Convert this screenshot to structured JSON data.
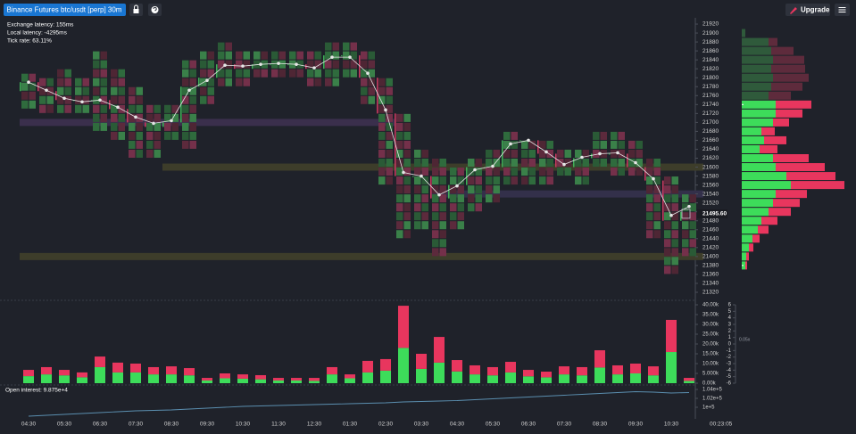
{
  "toolbar": {
    "symbol": "Binance Futures btc/usdt [perp] 30m",
    "upgrade": "Upgrade"
  },
  "status": [
    "Exchange latency: 155ms",
    "Local latency: -4295ms",
    "Tick rate: 63.11%"
  ],
  "countdown": "00:23:05",
  "chart_data": [
    {
      "type": "candlestick",
      "categories": [
        "04:30",
        null,
        "05:30",
        null,
        "06:30",
        null,
        "07:30",
        null,
        "08:30",
        null,
        "09:30",
        null,
        "10:30",
        null,
        "11:30",
        null,
        "12:30",
        null,
        "01:30",
        null,
        "02:30",
        null,
        "03:30",
        null,
        "04:30",
        null,
        "05:30",
        null,
        "06:30",
        null,
        "07:30",
        null,
        "08:30",
        null,
        "09:30",
        null,
        "10:30",
        null
      ],
      "open": [
        21770,
        21790,
        21770,
        21750,
        21750,
        21750,
        21730,
        21700,
        21690,
        21700,
        21780,
        21800,
        21830,
        21820,
        21830,
        21830,
        21830,
        21820,
        21850,
        21850,
        21800,
        21720,
        21580,
        21580,
        21530,
        21560,
        21600,
        21600,
        21660,
        21660,
        21630,
        21600,
        21620,
        21630,
        21630,
        21600,
        21570,
        21480
      ],
      "high": [
        21810,
        21800,
        21820,
        21800,
        21860,
        21820,
        21780,
        21740,
        21740,
        21840,
        21860,
        21880,
        21860,
        21860,
        21860,
        21860,
        21860,
        21880,
        21880,
        21860,
        21800,
        21720,
        21640,
        21620,
        21600,
        21620,
        21640,
        21680,
        21660,
        21660,
        21640,
        21640,
        21680,
        21680,
        21660,
        21620,
        21580,
        21540
      ],
      "low": [
        21740,
        21730,
        21720,
        21720,
        21680,
        21660,
        21620,
        21620,
        21660,
        21640,
        21740,
        21780,
        21780,
        21800,
        21800,
        21800,
        21790,
        21790,
        21800,
        21740,
        21560,
        21440,
        21460,
        21400,
        21460,
        21500,
        21520,
        21560,
        21560,
        21560,
        21580,
        21560,
        21600,
        21580,
        21580,
        21440,
        21360,
        21400
      ],
      "close": [
        21790,
        21770,
        21750,
        21750,
        21750,
        21730,
        21700,
        21690,
        21700,
        21780,
        21800,
        21830,
        21820,
        21830,
        21830,
        21830,
        21820,
        21850,
        21850,
        21800,
        21720,
        21580,
        21580,
        21530,
        21560,
        21600,
        21600,
        21660,
        21660,
        21630,
        21600,
        21620,
        21630,
        21630,
        21600,
        21570,
        21480,
        21500
      ],
      "line": [
        21790,
        21772,
        21754,
        21746,
        21750,
        21734,
        21712,
        21698,
        21704,
        21772,
        21794,
        21828,
        21826,
        21830,
        21832,
        21830,
        21822,
        21846,
        21846,
        21810,
        21728,
        21588,
        21580,
        21538,
        21558,
        21594,
        21602,
        21652,
        21660,
        21634,
        21606,
        21622,
        21630,
        21632,
        21610,
        21574,
        21492,
        21512
      ],
      "up_color": "#3fae57",
      "down_color": "#c8385f",
      "line_color": "#e6e6e6",
      "ylim": [
        21306,
        21934
      ],
      "yticks": [
        21920,
        21900,
        21880,
        21860,
        21840,
        21820,
        21800,
        21780,
        21760,
        21740,
        21720,
        21700,
        21680,
        21660,
        21640,
        21620,
        21600,
        21580,
        21560,
        21540,
        21520,
        21500,
        21480,
        21460,
        21440,
        21420,
        21400,
        21380,
        21360,
        21340,
        21320
      ],
      "last_price": {
        "value": 21495.6,
        "label": "21495.60"
      },
      "levels": [
        {
          "price": 21700,
          "color": "#3a2f4c",
          "start": 0,
          "end": 20
        },
        {
          "price": 21600,
          "color": "#3d3d2a",
          "start": 8,
          "end": 37
        },
        {
          "price": 21540,
          "color": "#33304a",
          "start": 23,
          "end": 37
        },
        {
          "price": 21400,
          "color": "#3d3d2a",
          "start": 0,
          "end": 37
        }
      ],
      "profile": {
        "levels": [
          21900,
          21880,
          21860,
          21840,
          21820,
          21800,
          21780,
          21760,
          21740,
          21720,
          21700,
          21680,
          21660,
          21640,
          21620,
          21600,
          21580,
          21560,
          21540,
          21520,
          21500,
          21480,
          21460,
          21440,
          21420,
          21400,
          21380
        ],
        "buy": [
          4,
          30,
          33,
          35,
          33,
          35,
          33,
          30,
          38,
          38,
          35,
          22,
          25,
          20,
          35,
          38,
          50,
          55,
          38,
          35,
          30,
          22,
          18,
          12,
          8,
          5,
          4
        ],
        "sell": [
          0,
          10,
          25,
          35,
          38,
          40,
          35,
          25,
          40,
          30,
          18,
          15,
          25,
          20,
          40,
          55,
          55,
          60,
          35,
          30,
          25,
          18,
          12,
          8,
          5,
          3,
          2
        ],
        "xlim": [
          0,
          128
        ],
        "value_area": [
          21380,
          21740
        ],
        "buy_color": "#3ddc5a",
        "sell_color": "#e8365e",
        "dim_buy_color": "#2f5a3b",
        "dim_sell_color": "#5e2b3c"
      }
    },
    {
      "type": "bar",
      "stacked": true,
      "series": [
        {
          "color": "#3ddc5a",
          "values": [
            3.6,
            4.5,
            4,
            3,
            8.2,
            5.5,
            5.5,
            4.5,
            4.5,
            4,
            1.4,
            2.5,
            2.3,
            2,
            1.4,
            1.4,
            1.2,
            4.5,
            2.5,
            5.5,
            6.4,
            18,
            7.3,
            10.5,
            6,
            4.5,
            4,
            5.5,
            3.5,
            3,
            4.5,
            4,
            8,
            4.5,
            5,
            4,
            15.9,
            1.2
          ]
        },
        {
          "color": "#e8365e",
          "values": [
            3.2,
            3.7,
            2.8,
            2.5,
            5.4,
            5,
            4.5,
            3.7,
            4.1,
            3.7,
            1.3,
            2.5,
            2.2,
            2.1,
            1.3,
            1.3,
            1.5,
            3.7,
            2,
            5.9,
            5.9,
            21.5,
            7.7,
            13.1,
            5.8,
            4.6,
            4.2,
            5.4,
            3.3,
            2.9,
            4.1,
            4.2,
            8.8,
            4.6,
            5,
            4.6,
            16.4,
            1.5
          ]
        }
      ],
      "ylim": [
        0,
        40
      ],
      "yticks": [
        {
          "value": 0,
          "label": "0.00k"
        },
        {
          "value": 5,
          "label": "5.000k"
        },
        {
          "value": 10,
          "label": "10.00k"
        },
        {
          "value": 15,
          "label": "15.00k"
        },
        {
          "value": 20,
          "label": "20.00k"
        },
        {
          "value": 25,
          "label": "25.00k"
        },
        {
          "value": 30,
          "label": "30.00k"
        },
        {
          "value": 35,
          "label": "35.00k"
        },
        {
          "value": 40,
          "label": "40.00k"
        }
      ],
      "y2lim": [
        -6,
        6
      ],
      "y2ticks": [
        6,
        5,
        4,
        3,
        2,
        1,
        0,
        -1,
        -2,
        -3,
        -4,
        -5,
        -6
      ],
      "annotation": "0.05x"
    },
    {
      "type": "line",
      "label": "Open interest: 9.875e+4",
      "color": "#5b8fb0",
      "values": [
        98000,
        98200,
        98400,
        98600,
        98800,
        99000,
        99200,
        99300,
        99400,
        99600,
        99800,
        100000,
        100200,
        100300,
        100400,
        100500,
        100600,
        100700,
        100800,
        100900,
        101000,
        101200,
        101300,
        101400,
        101500,
        101700,
        101900,
        102100,
        102300,
        102500,
        102700,
        102900,
        103100,
        103300,
        103500,
        103400,
        103200,
        103300
      ],
      "ylim": [
        97400,
        105000
      ],
      "yticks": [
        {
          "value": 104000,
          "label": "1.04e+5"
        },
        {
          "value": 102000,
          "label": "1.02e+5"
        },
        {
          "value": 100000,
          "label": "1e+5"
        }
      ]
    }
  ]
}
